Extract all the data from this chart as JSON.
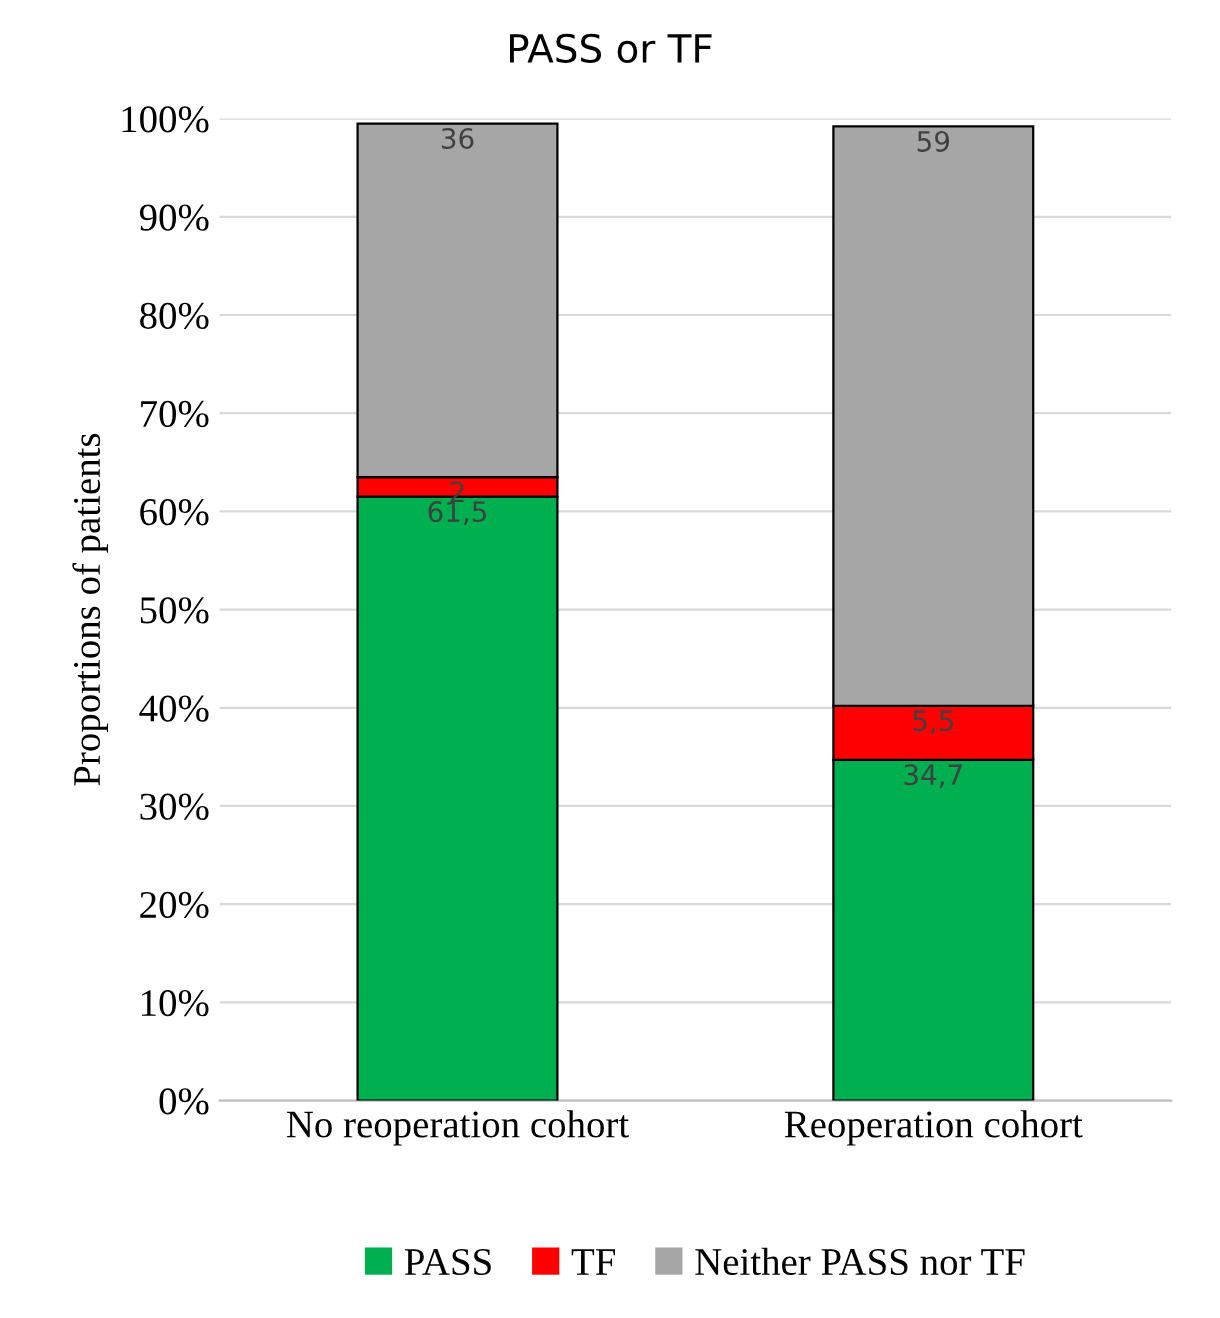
{
  "chart_data": {
    "type": "bar",
    "title": "PASS or TF",
    "ylabel": "Proportions of patients",
    "categories": [
      "No reoperation cohort",
      "Reoperation cohort"
    ],
    "stacked": true,
    "series": [
      {
        "name": "PASS",
        "color": "#00b050",
        "values": [
          61.5,
          34.7
        ],
        "value_labels": [
          "61,5",
          "34,7"
        ]
      },
      {
        "name": "TF",
        "color": "#ff0000",
        "values": [
          2,
          5.5
        ],
        "value_labels": [
          "2",
          "5,5"
        ]
      },
      {
        "name": "Neither PASS nor TF",
        "color": "#a6a6a6",
        "values": [
          36,
          59
        ],
        "value_labels": [
          "36",
          "59"
        ]
      }
    ],
    "ylim": [
      0,
      100
    ],
    "yticks": [
      {
        "value": 0,
        "label": "0%"
      },
      {
        "value": 10,
        "label": "10%"
      },
      {
        "value": 20,
        "label": "20%"
      },
      {
        "value": 30,
        "label": "30%"
      },
      {
        "value": 40,
        "label": "40%"
      },
      {
        "value": 50,
        "label": "50%"
      },
      {
        "value": 60,
        "label": "60%"
      },
      {
        "value": 70,
        "label": "70%"
      },
      {
        "value": 80,
        "label": "80%"
      },
      {
        "value": 90,
        "label": "90%"
      },
      {
        "value": 100,
        "label": "100%"
      }
    ],
    "grid": "y",
    "legend": "bottom"
  }
}
